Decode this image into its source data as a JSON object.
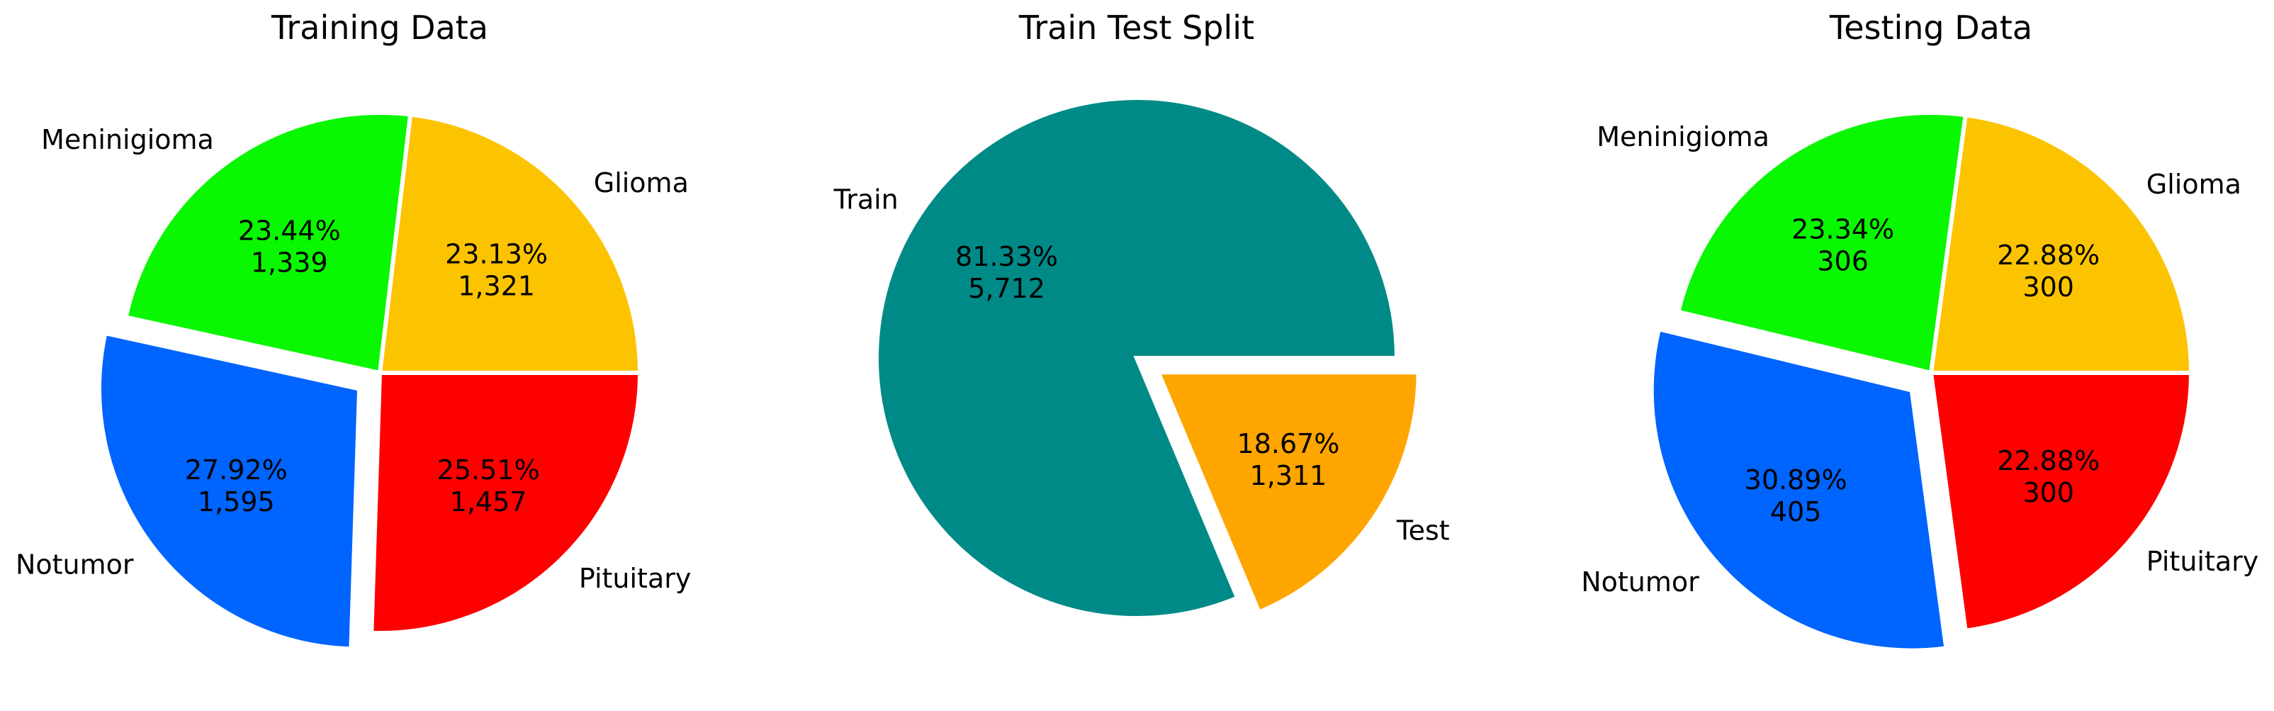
{
  "chart_data": [
    {
      "type": "pie",
      "title": "Training Data",
      "slices": [
        {
          "label": "Glioma",
          "value": 1321,
          "percent": "23.13%",
          "count": "1,321",
          "color": "#fcc400",
          "explode": false
        },
        {
          "label": "Meninigioma",
          "value": 1339,
          "percent": "23.44%",
          "count": "1,339",
          "color": "#09f700",
          "explode": false
        },
        {
          "label": "Notumor",
          "value": 1595,
          "percent": "27.92%",
          "count": "1,595",
          "color": "#0064fe",
          "explode": true
        },
        {
          "label": "Pituitary",
          "value": 1457,
          "percent": "25.51%",
          "count": "1,457",
          "color": "#fe0000",
          "explode": false
        }
      ]
    },
    {
      "type": "pie",
      "title": "Train Test Split",
      "slices": [
        {
          "label": "Train",
          "value": 5712,
          "percent": "81.33%",
          "count": "5,712",
          "color": "#008a87",
          "explode": false
        },
        {
          "label": "Test",
          "value": 1311,
          "percent": "18.67%",
          "count": "1,311",
          "color": "#ffa500",
          "explode": true
        }
      ]
    },
    {
      "type": "pie",
      "title": "Testing Data",
      "slices": [
        {
          "label": "Glioma",
          "value": 300,
          "percent": "22.88%",
          "count": "300",
          "color": "#fcc400",
          "explode": false
        },
        {
          "label": "Meninigioma",
          "value": 306,
          "percent": "23.34%",
          "count": "306",
          "color": "#09f700",
          "explode": false
        },
        {
          "label": "Notumor",
          "value": 405,
          "percent": "30.89%",
          "count": "405",
          "color": "#0064fe",
          "explode": true
        },
        {
          "label": "Pituitary",
          "value": 300,
          "percent": "22.88%",
          "count": "300",
          "color": "#fe0000",
          "explode": false
        }
      ]
    }
  ]
}
